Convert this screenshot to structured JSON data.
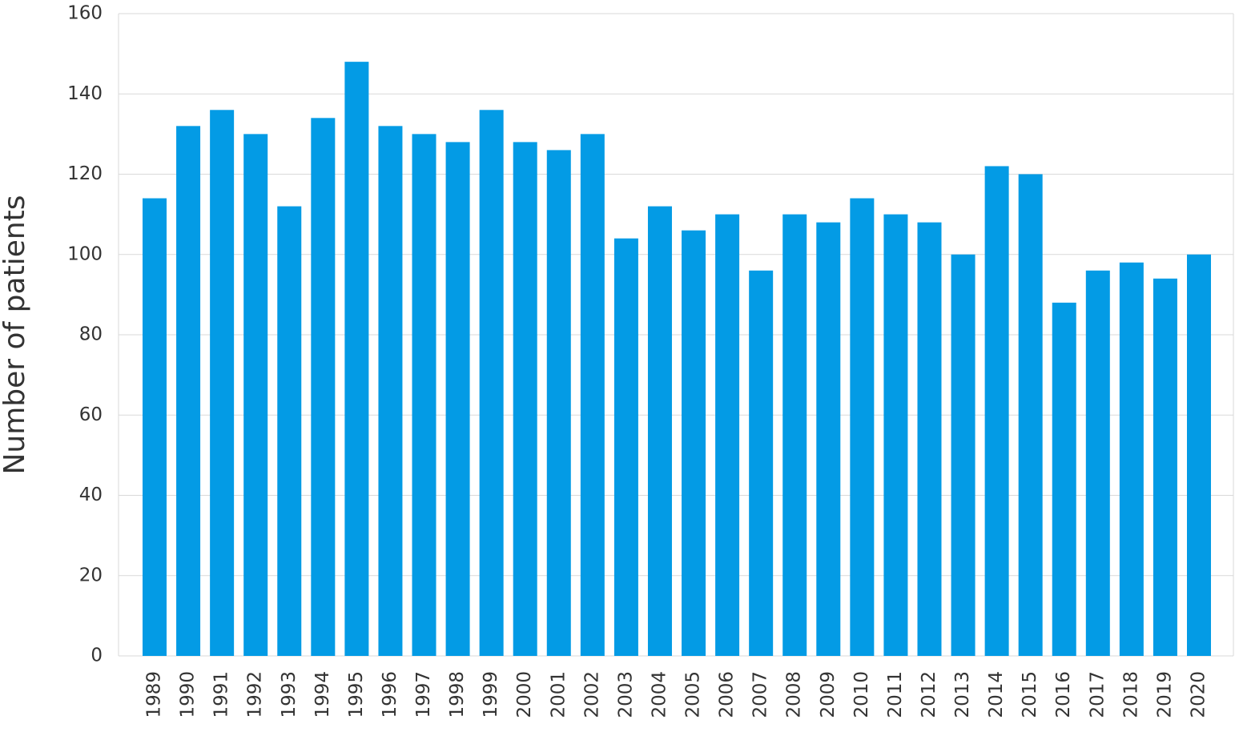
{
  "chart_data": {
    "type": "bar",
    "y_label": "Number of patients",
    "categories": [
      "1989",
      "1990",
      "1991",
      "1992",
      "1993",
      "1994",
      "1995",
      "1996",
      "1997",
      "1998",
      "1999",
      "2000",
      "2001",
      "2002",
      "2003",
      "2004",
      "2005",
      "2006",
      "2007",
      "2008",
      "2009",
      "2010",
      "2011",
      "2012",
      "2013",
      "2014",
      "2015",
      "2016",
      "2017",
      "2018",
      "2019",
      "2020"
    ],
    "values": [
      114,
      132,
      136,
      130,
      112,
      134,
      148,
      132,
      130,
      128,
      136,
      128,
      126,
      130,
      104,
      112,
      106,
      110,
      96,
      110,
      108,
      114,
      110,
      108,
      100,
      122,
      120,
      88,
      96,
      98,
      94,
      100
    ],
    "color": "#039be5",
    "ylim": [
      0,
      160
    ],
    "yticks": [
      0,
      20,
      40,
      60,
      80,
      100,
      120,
      140,
      160
    ],
    "grid": true
  }
}
